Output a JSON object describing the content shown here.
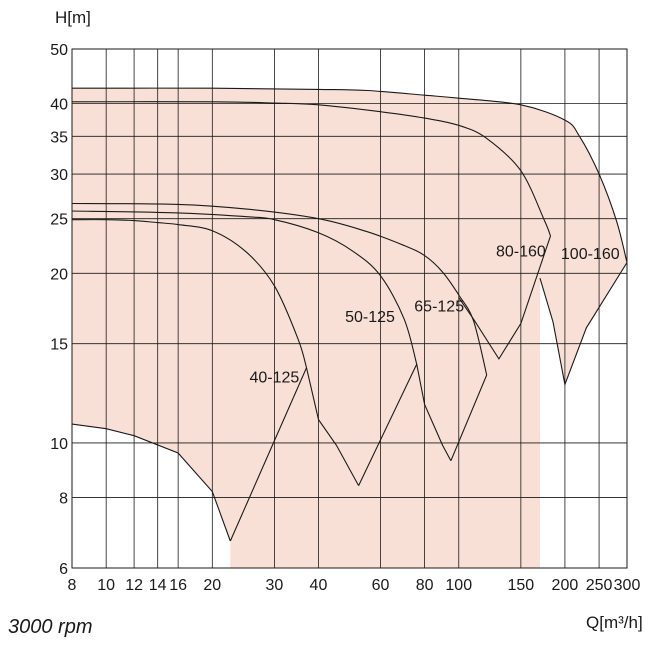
{
  "caption": "3000 rpm",
  "colors": {
    "region_fill": "#f9e0d6",
    "line": "#1a1a1a",
    "grid": "#1a1a1a"
  },
  "chart_data": {
    "type": "area",
    "title": "",
    "xlabel": "Q[m³/h]",
    "ylabel": "H[m]",
    "x_scale": "log",
    "y_scale": "log",
    "xlim": [
      8,
      300
    ],
    "ylim": [
      6,
      50
    ],
    "grid": true,
    "x_ticks": [
      8,
      10,
      12,
      14,
      16,
      20,
      30,
      40,
      60,
      80,
      100,
      150,
      200,
      250,
      300
    ],
    "y_ticks": [
      6,
      8,
      10,
      15,
      20,
      25,
      30,
      35,
      40,
      50
    ],
    "series": [
      {
        "name": "40-125",
        "label_at": [
          30,
          12.8
        ],
        "top": [
          [
            8,
            24.9
          ],
          [
            10,
            24.9
          ],
          [
            12,
            24.8
          ],
          [
            14,
            24.6
          ],
          [
            16,
            24.4
          ],
          [
            20,
            23.8
          ],
          [
            25,
            21.8
          ],
          [
            30,
            19.0
          ],
          [
            35,
            15.3
          ],
          [
            37,
            13.6
          ]
        ],
        "bottom": [
          [
            8,
            10.8
          ],
          [
            10,
            10.6
          ],
          [
            12,
            10.3
          ],
          [
            16,
            9.6
          ],
          [
            20,
            8.2
          ],
          [
            22.5,
            6.7
          ]
        ]
      },
      {
        "name": "50-125",
        "label_at": [
          56,
          16.4
        ],
        "top": [
          [
            8,
            25.8
          ],
          [
            16,
            25.6
          ],
          [
            25,
            25.2
          ],
          [
            30,
            24.9
          ],
          [
            40,
            23.6
          ],
          [
            50,
            21.9
          ],
          [
            60,
            19.8
          ],
          [
            70,
            16.6
          ],
          [
            76,
            13.8
          ]
        ],
        "bottom": [
          [
            37,
            13.6
          ],
          [
            40,
            11.0
          ],
          [
            45,
            9.9
          ],
          [
            52,
            8.4
          ]
        ]
      },
      {
        "name": "65-125",
        "label_at": [
          88,
          17.1
        ],
        "top": [
          [
            8,
            26.6
          ],
          [
            16,
            26.5
          ],
          [
            25,
            26.0
          ],
          [
            40,
            25.0
          ],
          [
            55,
            23.7
          ],
          [
            70,
            22.4
          ],
          [
            80,
            21.5
          ],
          [
            90,
            20.1
          ],
          [
            100,
            18.3
          ],
          [
            110,
            16.5
          ],
          [
            120,
            13.2
          ]
        ],
        "bottom": [
          [
            76,
            13.8
          ],
          [
            80,
            11.7
          ],
          [
            90,
            9.9
          ],
          [
            95,
            9.3
          ]
        ]
      },
      {
        "name": "80-160",
        "label_at": [
          150,
          21.4
        ],
        "top": [
          [
            8,
            40.3
          ],
          [
            20,
            40.3
          ],
          [
            30,
            40.1
          ],
          [
            40,
            39.8
          ],
          [
            60,
            38.7
          ],
          [
            80,
            37.7
          ],
          [
            100,
            36.6
          ],
          [
            120,
            34.7
          ],
          [
            150,
            30.4
          ],
          [
            175,
            24.8
          ],
          [
            182,
            23.3
          ]
        ],
        "bottom": [
          [
            100,
            18.1
          ],
          [
            110,
            16.6
          ],
          [
            130,
            14.1
          ],
          [
            150,
            16.3
          ],
          [
            182,
            23.3
          ]
        ]
      },
      {
        "name": "100-160",
        "label_at": [
          236,
          21.2
        ],
        "top": [
          [
            8,
            42.6
          ],
          [
            20,
            42.6
          ],
          [
            40,
            42.4
          ],
          [
            55,
            42.2
          ],
          [
            80,
            41.4
          ],
          [
            100,
            40.9
          ],
          [
            150,
            39.8
          ],
          [
            200,
            37.4
          ],
          [
            220,
            35.0
          ],
          [
            250,
            30.0
          ],
          [
            280,
            24.8
          ],
          [
            300,
            20.9
          ]
        ],
        "bottom": [
          [
            170,
            19.6
          ],
          [
            185,
            16.4
          ],
          [
            200,
            12.7
          ],
          [
            230,
            16.0
          ],
          [
            300,
            20.9
          ]
        ]
      }
    ]
  }
}
